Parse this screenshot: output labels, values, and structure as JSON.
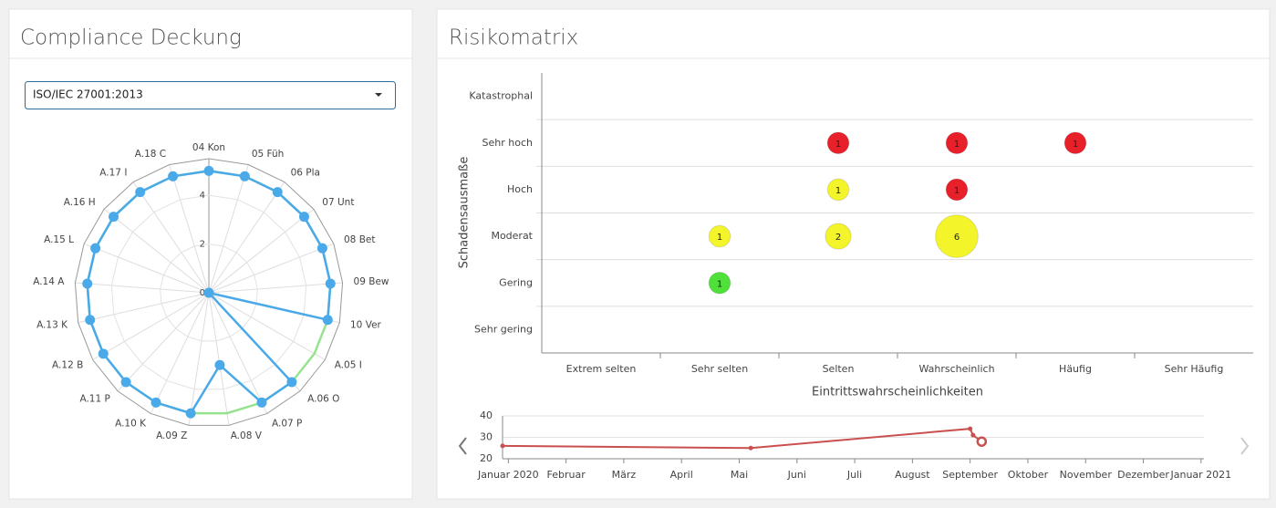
{
  "panels": [
    {
      "title": "Compliance Deckung"
    },
    {
      "title": "Risikomatrix"
    }
  ],
  "dropdown": {
    "value": "ISO/IEC 27001:2013"
  },
  "chart_data": [
    {
      "type": "radar",
      "categories": [
        "04 Kon",
        "05 Füh",
        "06 Pla",
        "07 Unt",
        "08 Bet",
        "09 Bew",
        "10 Ver",
        "A.05 I",
        "A.06 O",
        "A.07 P",
        "A.08 V",
        "A.09 Z",
        "A.10 K",
        "A.11 P",
        "A.12 B",
        "A.13 K",
        "A.14 A",
        "A.15 L",
        "A.16 H",
        "A.17 I",
        "A.18 C"
      ],
      "rlim": [
        0,
        5.5
      ],
      "rticks": [
        0,
        2,
        4
      ],
      "series": [
        {
          "color": "#95e38e",
          "markers": false,
          "values": [
            5,
            5,
            5,
            5,
            5,
            5,
            5,
            5,
            5,
            5,
            5,
            5,
            5,
            5,
            5,
            5,
            5,
            5,
            5,
            5,
            5
          ]
        },
        {
          "color": "#4aa9e9",
          "markers": true,
          "values": [
            5,
            5,
            5,
            5,
            5,
            5,
            5,
            0,
            5,
            5,
            3,
            5,
            5,
            5,
            5,
            5,
            5,
            5,
            5,
            5,
            5
          ]
        }
      ]
    },
    {
      "type": "bubble",
      "categories": [
        "Extrem selten",
        "Sehr selten",
        "Selten",
        "Wahrscheinlich",
        "Häufig",
        "Sehr Häufig"
      ],
      "y_categories": [
        "Sehr gering",
        "Gering",
        "Moderat",
        "Hoch",
        "Sehr hoch",
        "Katastrophal"
      ],
      "xlabel": "Eintrittswahrscheinlichkeiten",
      "ylabel": "Schadensausmaße",
      "points": [
        {
          "x": "Sehr selten",
          "y": "Gering",
          "value": 1,
          "color": "#4fe03a"
        },
        {
          "x": "Sehr selten",
          "y": "Moderat",
          "value": 1,
          "color": "#f4f42a"
        },
        {
          "x": "Selten",
          "y": "Moderat",
          "value": 2,
          "color": "#f4f42a"
        },
        {
          "x": "Wahrscheinlich",
          "y": "Moderat",
          "value": 6,
          "color": "#f4f42a"
        },
        {
          "x": "Selten",
          "y": "Hoch",
          "value": 1,
          "color": "#f4f42a"
        },
        {
          "x": "Wahrscheinlich",
          "y": "Hoch",
          "value": 1,
          "color": "#e8202a"
        },
        {
          "x": "Selten",
          "y": "Sehr hoch",
          "value": 1,
          "color": "#e8202a"
        },
        {
          "x": "Wahrscheinlich",
          "y": "Sehr hoch",
          "value": 1,
          "color": "#e8202a"
        },
        {
          "x": "Häufig",
          "y": "Sehr hoch",
          "value": 1,
          "color": "#e8202a"
        }
      ]
    },
    {
      "type": "line",
      "color": "#c9504f",
      "x": [
        -0.1,
        4.2,
        8.0,
        8.05,
        8.2
      ],
      "values": [
        26,
        25,
        34,
        31,
        28
      ],
      "highlight_index": 4,
      "xlim": [
        -0.1,
        12.05
      ],
      "ylim": [
        20,
        40
      ],
      "yticks": [
        20,
        30,
        40
      ],
      "xticks": [
        {
          "value": 0,
          "label": "Januar 2020"
        },
        {
          "value": 1,
          "label": "Februar"
        },
        {
          "value": 2,
          "label": "März"
        },
        {
          "value": 3,
          "label": "April"
        },
        {
          "value": 4,
          "label": "Mai"
        },
        {
          "value": 5,
          "label": "Juni"
        },
        {
          "value": 6,
          "label": "Juli"
        },
        {
          "value": 7,
          "label": "August"
        },
        {
          "value": 8,
          "label": "September"
        },
        {
          "value": 9,
          "label": "Oktober"
        },
        {
          "value": 10,
          "label": "November"
        },
        {
          "value": 11,
          "label": "Dezember"
        },
        {
          "value": 12,
          "label": "Januar 2021"
        }
      ]
    }
  ]
}
